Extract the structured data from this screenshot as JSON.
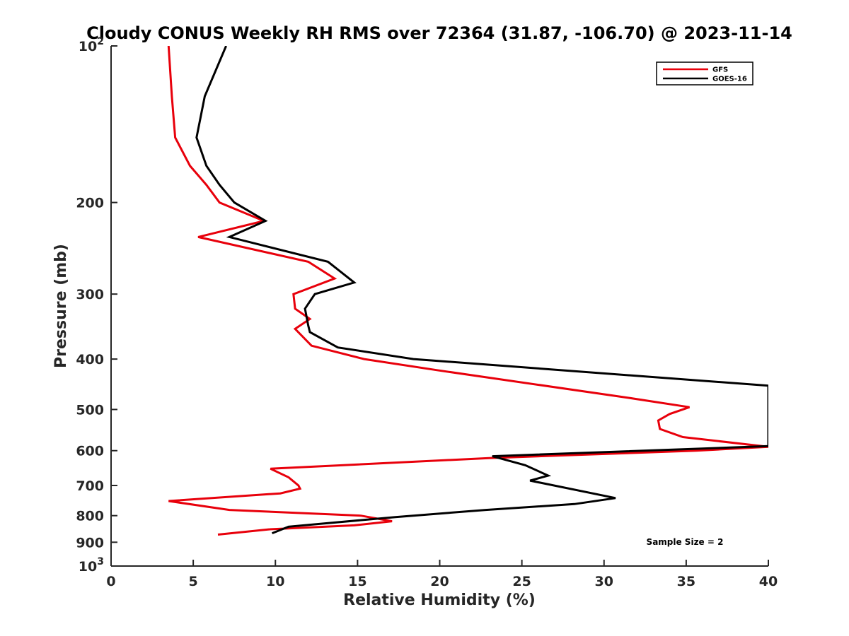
{
  "chart_data": {
    "type": "line",
    "title": "Cloudy CONUS Weekly RH RMS over 72364 (31.87, -106.70) @ 2023-11-14",
    "xlabel": "Relative Humidity (%)",
    "ylabel": "Pressure (mb)",
    "xlim": [
      0,
      40
    ],
    "ylim": [
      100,
      1000
    ],
    "yscale": "log",
    "yreversed": true,
    "grid": false,
    "legend_position": "top-right",
    "x_ticks": [
      0,
      5,
      10,
      15,
      20,
      25,
      30,
      35,
      40
    ],
    "x_tick_labels": [
      "0",
      "5",
      "10",
      "15",
      "20",
      "25",
      "30",
      "35",
      "40"
    ],
    "y_ticks": [
      100,
      200,
      300,
      400,
      500,
      600,
      700,
      800,
      900,
      1000
    ],
    "y_tick_labels": [
      {
        "base": "10",
        "exp": "2"
      },
      {
        "base": "200",
        "exp": ""
      },
      {
        "base": "300",
        "exp": ""
      },
      {
        "base": "400",
        "exp": ""
      },
      {
        "base": "500",
        "exp": ""
      },
      {
        "base": "600",
        "exp": ""
      },
      {
        "base": "700",
        "exp": ""
      },
      {
        "base": "800",
        "exp": ""
      },
      {
        "base": "900",
        "exp": ""
      },
      {
        "base": "10",
        "exp": "3"
      }
    ],
    "annotation": "Sample Size = 2",
    "series": [
      {
        "name": "GFS",
        "color": "#e8000b",
        "points": [
          [
            3.5,
            100
          ],
          [
            3.7,
            125
          ],
          [
            3.9,
            150
          ],
          [
            4.8,
            170
          ],
          [
            5.8,
            185
          ],
          [
            6.6,
            200
          ],
          [
            9.3,
            217
          ],
          [
            5.3,
            233
          ],
          [
            12.0,
            260
          ],
          [
            13.6,
            280
          ],
          [
            11.1,
            300
          ],
          [
            11.2,
            320
          ],
          [
            12.1,
            335
          ],
          [
            11.2,
            350
          ],
          [
            12.2,
            377
          ],
          [
            15.4,
            400
          ],
          [
            19.8,
            420
          ],
          [
            31.5,
            475
          ],
          [
            35.2,
            495
          ],
          [
            34.0,
            510
          ],
          [
            33.3,
            525
          ],
          [
            33.4,
            545
          ],
          [
            34.8,
            565
          ],
          [
            40.0,
            590
          ],
          [
            35.6,
            600
          ],
          [
            23.0,
            620
          ],
          [
            9.7,
            650
          ],
          [
            10.8,
            675
          ],
          [
            11.4,
            700
          ],
          [
            11.5,
            710
          ],
          [
            10.3,
            725
          ],
          [
            3.5,
            750
          ],
          [
            7.2,
            780
          ],
          [
            15.2,
            800
          ],
          [
            17.1,
            820
          ],
          [
            14.8,
            835
          ],
          [
            9.6,
            850
          ],
          [
            6.5,
            870
          ]
        ]
      },
      {
        "name": "GOES-16",
        "color": "#000000",
        "points": [
          [
            7.0,
            100
          ],
          [
            5.7,
            125
          ],
          [
            5.2,
            150
          ],
          [
            5.8,
            170
          ],
          [
            6.6,
            185
          ],
          [
            7.5,
            200
          ],
          [
            9.4,
            217
          ],
          [
            7.2,
            233
          ],
          [
            13.2,
            260
          ],
          [
            14.8,
            285
          ],
          [
            12.4,
            300
          ],
          [
            11.8,
            320
          ],
          [
            12.0,
            345
          ],
          [
            12.1,
            355
          ],
          [
            13.8,
            380
          ],
          [
            18.4,
            400
          ],
          [
            40.0,
            450
          ],
          [
            40.0,
            588
          ],
          [
            23.2,
            615
          ],
          [
            25.2,
            640
          ],
          [
            26.6,
            670
          ],
          [
            25.5,
            685
          ],
          [
            30.7,
            740
          ],
          [
            28.2,
            760
          ],
          [
            22.8,
            780
          ],
          [
            17.3,
            805
          ],
          [
            10.8,
            840
          ],
          [
            9.8,
            865
          ]
        ]
      }
    ]
  }
}
